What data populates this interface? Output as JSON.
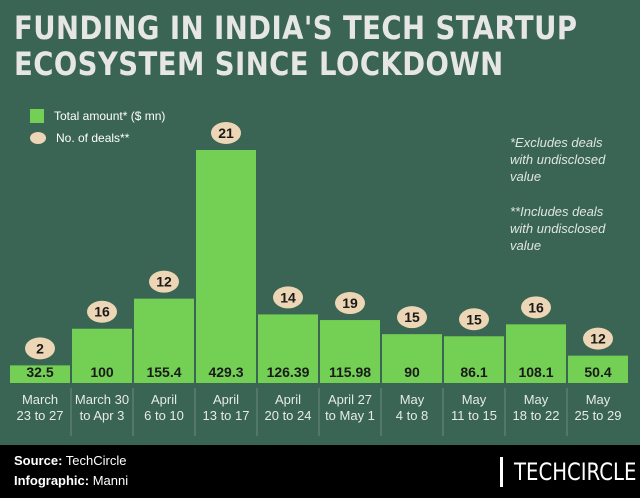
{
  "title_line1": "FUNDING IN INDIA'S TECH STARTUP",
  "title_line2": "ECOSYSTEM SINCE LOCKDOWN",
  "colors": {
    "background": "#3a6453",
    "bar": "#74cf55",
    "deal_badge": "#ecd6b5",
    "footer": "#000000"
  },
  "legend": {
    "amount": "Total amount* ($ mn)",
    "deals": "No. of deals**"
  },
  "notes": {
    "note1_lines": [
      "*Excludes deals",
      "with undisclosed",
      "value"
    ],
    "note2_lines": [
      "**Includes deals",
      "with undisclosed",
      "value"
    ]
  },
  "chart_data": {
    "type": "bar",
    "categories": [
      [
        "March",
        "23 to 27"
      ],
      [
        "March 30",
        "to Apr 3"
      ],
      [
        "April",
        "6 to 10"
      ],
      [
        "April",
        "13 to 17"
      ],
      [
        "April",
        "20 to 24"
      ],
      [
        "April 27",
        "to May 1"
      ],
      [
        "May",
        "4 to 8"
      ],
      [
        "May",
        "11 to 15"
      ],
      [
        "May",
        "18 to 22"
      ],
      [
        "May",
        "25 to 29"
      ]
    ],
    "series": [
      {
        "name": "Total amount* ($ mn)",
        "values": [
          32.5,
          100,
          155.4,
          429.3,
          126.39,
          115.98,
          90,
          86.1,
          108.1,
          50.4
        ],
        "labels": [
          "32.5",
          "100",
          "155.4",
          "429.3",
          "126.39",
          "115.98",
          "90",
          "86.1",
          "108.1",
          "50.4"
        ]
      },
      {
        "name": "No. of deals**",
        "values": [
          2,
          16,
          12,
          21,
          14,
          19,
          15,
          15,
          16,
          12
        ]
      }
    ],
    "ylim": [
      0,
      429.3
    ],
    "grid": false,
    "legend_position": "top-left"
  },
  "footer": {
    "source_label": "Source:",
    "source_value": " TechCircle",
    "infographic_label": "Infographic:",
    "infographic_value": " Manni",
    "logo": "TECHCIRCLE"
  }
}
